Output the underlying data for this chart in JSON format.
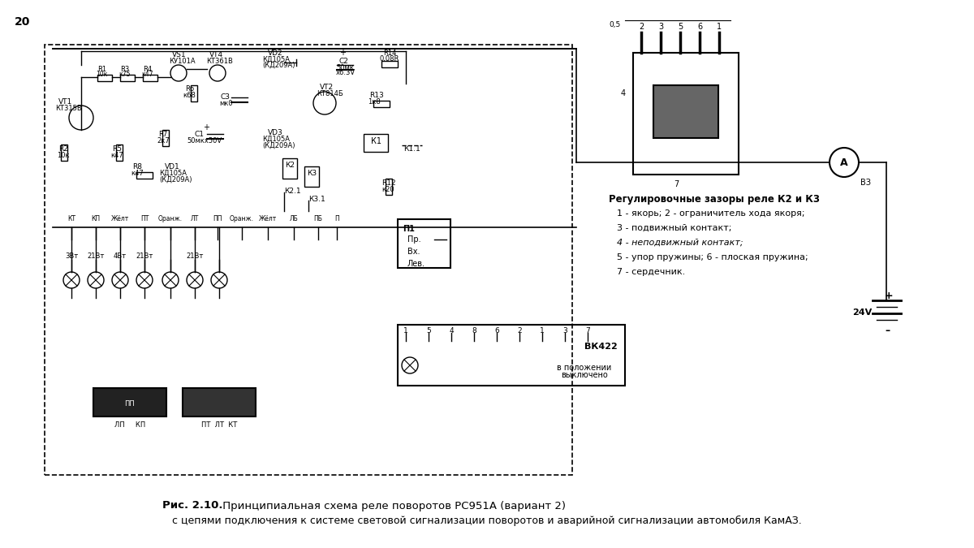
{
  "bg_color": "#ffffff",
  "page_number": "20",
  "caption_bold": "Рис. 2.10.",
  "caption_main": " Принципиальная схема реле поворотов РС951А (вариант 2)",
  "caption_sub": "с цепями подключения к системе световой сигнализации поворотов и аварийной сигнализации автомобиля КамАЗ.",
  "right_title": "Регулировочные зазоры реле К2 и К3",
  "right_items": [
    "1 - якорь; 2 - ограничитель хода якоря;",
    "3 - подвижный контакт;",
    "4 - неподвижный контакт;",
    "5 - упор пружины; 6 - плоская пружина;",
    "7 - сердечник."
  ],
  "figsize": [
    12.0,
    6.75
  ],
  "dpi": 100
}
